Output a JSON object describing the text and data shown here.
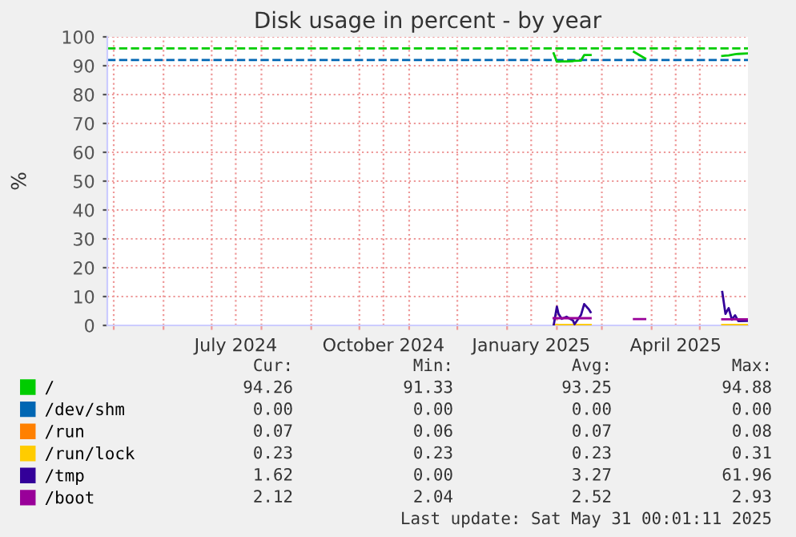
{
  "chart_data": {
    "type": "line",
    "title": "Disk usage in percent - by year",
    "ylabel": "%",
    "xlim": [
      "2024-04-27",
      "2025-05-31"
    ],
    "xticks": [
      {
        "value": "2024-05-01",
        "label": null
      },
      {
        "value": "2024-06-01",
        "label": null
      },
      {
        "value": "2024-07-01",
        "label": null
      },
      {
        "value": "2024-07-16",
        "label": "July 2024"
      },
      {
        "value": "2024-08-01",
        "label": null
      },
      {
        "value": "2024-09-01",
        "label": null
      },
      {
        "value": "2024-10-01",
        "label": null
      },
      {
        "value": "2024-10-16",
        "label": "October 2024"
      },
      {
        "value": "2024-11-01",
        "label": null
      },
      {
        "value": "2024-12-01",
        "label": null
      },
      {
        "value": "2025-01-01",
        "label": null
      },
      {
        "value": "2025-01-16",
        "label": "January 2025"
      },
      {
        "value": "2025-02-01",
        "label": null
      },
      {
        "value": "2025-03-01",
        "label": null
      },
      {
        "value": "2025-04-01",
        "label": null
      },
      {
        "value": "2025-04-16",
        "label": "April 2025"
      },
      {
        "value": "2025-05-01",
        "label": null
      }
    ],
    "ylim": [
      0,
      100
    ],
    "yticks": [
      0,
      10,
      20,
      30,
      40,
      50,
      60,
      70,
      80,
      90,
      100
    ],
    "grid": true,
    "legend": "bottom",
    "marker": "none",
    "line_style": "solid",
    "ref_lines": [
      {
        "axis": "y",
        "value": 96,
        "label": null,
        "color": "#00cc00",
        "line_style": "dashed"
      },
      {
        "axis": "y",
        "value": 92,
        "label": null,
        "color": "#0066b3",
        "line_style": "dashed"
      }
    ],
    "x": [
      "2025-01-30",
      "2025-02-01",
      "2025-02-02",
      "2025-02-04",
      "2025-02-07",
      "2025-02-11",
      "2025-02-12",
      "2025-02-16",
      "2025-02-18",
      "2025-02-21",
      "2025-02-22",
      "2025-02-23",
      "2025-03-21",
      "2025-03-28",
      "2025-03-29",
      "2025-05-15",
      "2025-05-17",
      "2025-05-19",
      "2025-05-21",
      "2025-05-23",
      "2025-05-25",
      "2025-05-31"
    ],
    "series": [
      {
        "name": "/",
        "color": "#00cc00",
        "values": [
          94.3,
          91.4,
          91.4,
          91.5,
          91.5,
          91.6,
          91.7,
          91.8,
          93.7,
          93.7,
          93.7,
          null,
          94.8,
          92.5,
          null,
          93.4,
          93.5,
          93.6,
          93.8,
          94.0,
          94.1,
          94.3
        ]
      },
      {
        "name": "/dev/shm",
        "color": "#0066b3",
        "values": [
          null,
          null,
          null,
          null,
          null,
          null,
          null,
          null,
          null,
          null,
          null,
          null,
          null,
          null,
          null,
          null,
          null,
          null,
          null,
          null,
          null,
          null
        ]
      },
      {
        "name": "/run",
        "color": "#ff8000",
        "values": [
          null,
          null,
          null,
          null,
          null,
          null,
          null,
          null,
          null,
          null,
          null,
          null,
          null,
          null,
          null,
          null,
          null,
          null,
          null,
          null,
          null,
          null
        ]
      },
      {
        "name": "/run/lock",
        "color": "#ffcc00",
        "values": [
          0.2,
          0.2,
          0.2,
          0.2,
          0.2,
          0.2,
          0.2,
          0.2,
          0.2,
          0.2,
          0.2,
          null,
          null,
          null,
          null,
          0.2,
          0.2,
          0.2,
          0.2,
          0.2,
          0.2,
          0.2
        ]
      },
      {
        "name": "/tmp",
        "color": "#330099",
        "values": [
          0,
          6.5,
          4,
          2.3,
          3,
          1.7,
          0.4,
          3.6,
          7.4,
          5.5,
          4.6,
          null,
          null,
          null,
          null,
          11.6,
          4,
          6,
          2,
          3.5,
          1.5,
          1.6
        ]
      },
      {
        "name": "/boot",
        "color": "#990099",
        "values": [
          2.5,
          2.5,
          2.5,
          2.5,
          2.5,
          2.5,
          2.5,
          2.5,
          2.5,
          2.5,
          2.5,
          null,
          2.2,
          2.2,
          null,
          2.1,
          2.1,
          2.1,
          2.1,
          2.1,
          2.1,
          2.1
        ]
      }
    ],
    "annotations": [
      "Cur:",
      "Min:",
      "Avg:",
      "Max:",
      "94.26",
      "91.33",
      "93.25",
      "94.88",
      "0.00",
      "0.00",
      "0.00",
      "0.00",
      "0.07",
      "0.06",
      "0.07",
      "0.08",
      "0.23",
      "0.23",
      "0.23",
      "0.31",
      "1.62",
      "0.00",
      "3.27",
      "61.96",
      "2.12",
      "2.04",
      "2.52",
      "2.93",
      "Last update: Sat May 31 00:01:11 2025"
    ]
  }
}
